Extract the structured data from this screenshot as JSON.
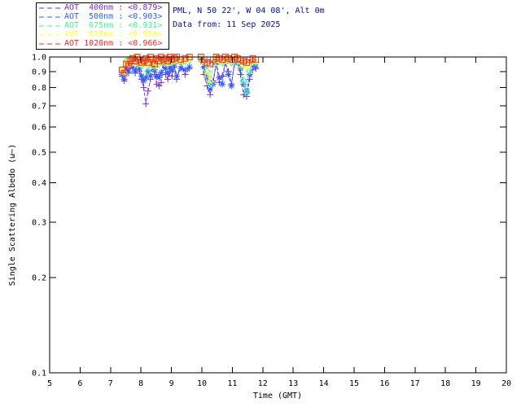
{
  "header": {
    "site_line": "PML, N 50 22', W 04 08', Alt 0m",
    "date_line": "Data from: 11 Sep 2025",
    "text_color": "#001489"
  },
  "legend": {
    "entries": [
      {
        "id": "aot-400nm",
        "label": "AOT  400nm : <0.879>",
        "color": "#7E2ACF"
      },
      {
        "id": "aot-500nm",
        "label": "AOT  500nm : <0.903>",
        "color": "#2E5CFF"
      },
      {
        "id": "aot-675nm",
        "label": "AOT  675nm : <0.931>",
        "color": "#3BF59B"
      },
      {
        "id": "aot-870nm",
        "label": "AOT  870nm : <0.958>",
        "color": "#FFFF33"
      },
      {
        "id": "aot-1020nm",
        "label": "AOT 1020nm : <0.966>",
        "color": "#F92A25"
      }
    ]
  },
  "chart_data": {
    "type": "line",
    "title": "",
    "xlabel": "Time (GMT)",
    "ylabel": "Single Scattering Albedo (ω~)",
    "xlim": [
      5,
      20
    ],
    "ylim": [
      0.1,
      1.0
    ],
    "yscale": "log",
    "grid": false,
    "legend_position": "top-left-outside",
    "xticks": [
      5,
      6,
      7,
      8,
      9,
      10,
      11,
      12,
      13,
      14,
      15,
      16,
      17,
      18,
      19,
      20
    ],
    "ytick_labels": [
      "1.0",
      "0.9",
      "0.8",
      "0.7",
      "0.6",
      "0.5",
      "0.4",
      "0.3",
      "0.2",
      "0.1"
    ],
    "ytick_values": [
      1.0,
      0.9,
      0.8,
      0.7,
      0.6,
      0.5,
      0.4,
      0.3,
      0.2,
      0.1
    ],
    "times_morning": [
      7.38,
      7.45,
      7.52,
      7.59,
      7.66,
      7.73,
      7.81,
      7.88,
      7.95,
      8.02,
      8.09,
      8.16,
      8.23,
      8.31,
      8.38,
      8.45,
      8.52,
      8.59,
      8.66,
      8.74,
      8.81,
      8.88,
      8.95,
      9.02,
      9.09,
      9.17,
      9.31,
      9.45,
      9.59
    ],
    "times_midday": [
      9.97,
      10.07,
      10.17,
      10.27,
      10.37,
      10.47,
      10.57,
      10.67,
      10.77,
      10.87,
      10.97,
      11.07,
      11.17,
      11.27,
      11.37,
      11.47,
      11.57,
      11.67,
      11.77
    ],
    "series": [
      {
        "name": "AOT 400nm",
        "mean_label": "<0.879>",
        "color": "#7E2ACF",
        "marker": "plus",
        "linestyle": "dashed",
        "v_morning": [
          0.87,
          0.84,
          0.91,
          0.89,
          0.94,
          0.92,
          0.89,
          0.96,
          0.9,
          0.85,
          0.8,
          0.71,
          0.78,
          0.85,
          0.93,
          0.88,
          0.82,
          0.81,
          0.83,
          0.94,
          0.88,
          0.85,
          0.9,
          0.87,
          0.93,
          0.85,
          0.95,
          0.88,
          0.92
        ],
        "v_midday": [
          0.97,
          0.88,
          0.81,
          0.76,
          0.84,
          0.95,
          0.83,
          0.87,
          0.96,
          0.9,
          0.82,
          0.95,
          0.97,
          0.88,
          0.76,
          0.75,
          0.85,
          0.91,
          0.92
        ]
      },
      {
        "name": "AOT 500nm",
        "mean_label": "<0.903>",
        "color": "#2E5CFF",
        "marker": "asterisk",
        "linestyle": "dashed",
        "v_morning": [
          0.88,
          0.85,
          0.92,
          0.9,
          0.95,
          0.93,
          0.9,
          0.97,
          0.92,
          0.87,
          0.84,
          0.86,
          0.9,
          0.87,
          0.95,
          0.91,
          0.87,
          0.86,
          0.89,
          0.96,
          0.92,
          0.89,
          0.93,
          0.91,
          0.95,
          0.87,
          0.92,
          0.91,
          0.93
        ],
        "v_midday": [
          0.98,
          0.93,
          0.86,
          0.79,
          0.82,
          0.96,
          0.86,
          0.82,
          0.97,
          0.88,
          0.81,
          0.96,
          0.98,
          0.92,
          0.82,
          0.78,
          0.88,
          0.94,
          0.93
        ]
      },
      {
        "name": "AOT 675nm",
        "mean_label": "<0.931>",
        "color": "#3BF59B",
        "marker": "diamond",
        "linestyle": "dashed",
        "v_morning": [
          0.91,
          0.89,
          0.97,
          0.96,
          0.99,
          0.98,
          0.95,
          1.0,
          0.96,
          0.94,
          0.95,
          0.97,
          0.9,
          0.98,
          0.96,
          0.93,
          0.97,
          0.95,
          0.98,
          0.96,
          0.97,
          0.95,
          0.98,
          0.96,
          0.97,
          0.98,
          0.96,
          0.97,
          0.98
        ],
        "v_midday": [
          0.99,
          0.97,
          0.9,
          0.82,
          0.95,
          0.99,
          0.97,
          0.96,
          0.99,
          0.98,
          0.96,
          0.98,
          0.99,
          0.94,
          0.84,
          0.77,
          0.9,
          0.97,
          0.96
        ]
      },
      {
        "name": "AOT 870nm",
        "mean_label": "<0.958>",
        "color": "#FFFF33",
        "marker": "triangle",
        "linestyle": "dashed",
        "v_morning": [
          0.92,
          0.9,
          0.96,
          0.95,
          0.98,
          1.0,
          0.96,
          0.99,
          0.97,
          0.95,
          0.96,
          0.98,
          0.95,
          0.99,
          0.97,
          0.94,
          0.98,
          0.96,
          0.99,
          0.97,
          0.98,
          0.96,
          0.99,
          0.97,
          0.98,
          0.99,
          0.97,
          0.98,
          0.99
        ],
        "v_midday": [
          0.99,
          0.96,
          0.88,
          0.85,
          0.96,
          1.0,
          0.98,
          0.97,
          0.99,
          0.98,
          0.97,
          0.99,
          1.0,
          0.97,
          0.95,
          0.93,
          0.96,
          0.98,
          0.97
        ]
      },
      {
        "name": "AOT 1020nm",
        "mean_label": "<0.966>",
        "color": "#F92A25",
        "marker": "square",
        "linestyle": "dashed",
        "v_morning": [
          0.91,
          0.89,
          0.95,
          0.94,
          0.97,
          0.99,
          0.97,
          1.0,
          0.98,
          0.96,
          0.97,
          0.99,
          0.96,
          1.0,
          0.98,
          0.95,
          0.99,
          0.97,
          1.0,
          0.98,
          0.99,
          0.97,
          1.0,
          0.98,
          0.99,
          1.0,
          0.98,
          0.99,
          1.0
        ],
        "v_midday": [
          1.0,
          0.98,
          0.96,
          0.95,
          0.98,
          1.0,
          0.99,
          0.98,
          1.0,
          0.99,
          0.98,
          1.0,
          0.99,
          0.98,
          0.97,
          0.96,
          0.98,
          0.99,
          0.98
        ]
      }
    ]
  }
}
